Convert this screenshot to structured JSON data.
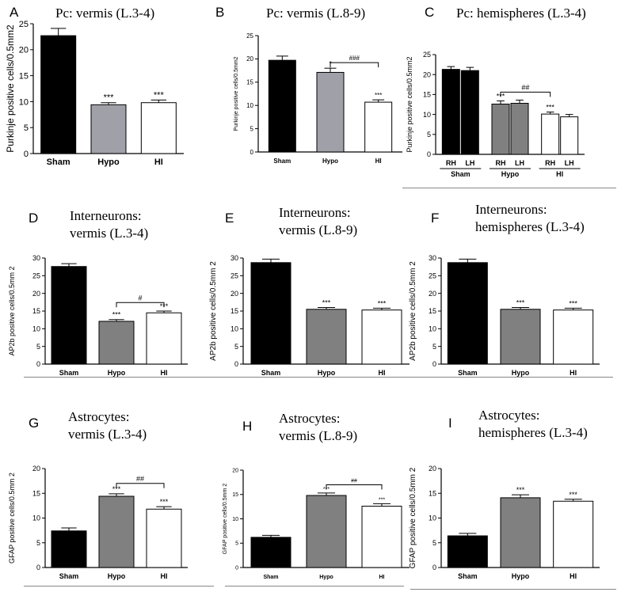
{
  "chart_data": [
    {
      "id": "A",
      "type": "bar",
      "title": "Pc: vermis (L.3-4)",
      "ylabel": "Purkinje positive cells/0.5mm2",
      "categories": [
        "Sham",
        "Hypo",
        "HI"
      ],
      "values": [
        22.7,
        9.4,
        9.8
      ],
      "errors": [
        1.4,
        0.4,
        0.5
      ],
      "fills": [
        "#000000",
        "#a0a0a8",
        "#ffffff"
      ],
      "ylim": [
        0,
        25
      ],
      "yticks": [
        0,
        5,
        10,
        15,
        20,
        25
      ],
      "annotations": [
        {
          "bar": 1,
          "text": "***"
        },
        {
          "bar": 2,
          "text": "***"
        }
      ],
      "brackets": []
    },
    {
      "id": "B",
      "type": "bar",
      "title": "Pc: vermis (L.8-9)",
      "ylabel": "Purkinje positive cells/0.5mm2",
      "categories": [
        "Sham",
        "Hypo",
        "HI"
      ],
      "values": [
        19.7,
        17.1,
        10.7
      ],
      "errors": [
        0.9,
        0.9,
        0.5
      ],
      "fills": [
        "#000000",
        "#a0a0a8",
        "#ffffff"
      ],
      "ylim": [
        0,
        25
      ],
      "yticks": [
        0,
        5,
        10,
        15,
        20,
        25
      ],
      "annotations": [
        {
          "bar": 1,
          "text": "*"
        },
        {
          "bar": 2,
          "text": "***"
        }
      ],
      "brackets": [
        {
          "from": 1,
          "to": 2,
          "y": 19.2,
          "text": "###"
        }
      ]
    },
    {
      "id": "C",
      "type": "bar",
      "title": "Pc: hemispheres (L.3-4)",
      "ylabel": "Purkinje positive cells/0.5mm2",
      "categories": [
        "RH",
        "LH",
        "RH",
        "LH",
        "RH",
        "LH"
      ],
      "values": [
        21.3,
        21.0,
        12.6,
        12.8,
        10.1,
        9.4
      ],
      "errors": [
        0.7,
        0.8,
        0.8,
        0.8,
        0.5,
        0.6
      ],
      "fills": [
        "#000000",
        "#000000",
        "#808080",
        "#808080",
        "#ffffff",
        "#ffffff"
      ],
      "ylim": [
        0,
        25
      ],
      "yticks": [
        0,
        5,
        10,
        15,
        20,
        25
      ],
      "groups": [
        "Sham",
        "Hypo",
        "HI"
      ],
      "annotations": [
        {
          "bar": 2,
          "text": "***"
        },
        {
          "bar": 4,
          "text": "***"
        }
      ],
      "brackets": [
        {
          "from": 2,
          "to": 4,
          "y": 15.6,
          "text": "##"
        }
      ]
    },
    {
      "id": "D",
      "type": "bar",
      "title": "Interneurons:",
      "subtitle": "vermis (L.3-4)",
      "ylabel": "AP2b positive cells/0.5mm 2",
      "categories": [
        "Sham",
        "Hypo",
        "HI"
      ],
      "values": [
        27.6,
        12.1,
        14.5
      ],
      "errors": [
        0.8,
        0.5,
        0.5
      ],
      "fills": [
        "#000000",
        "#808080",
        "#ffffff"
      ],
      "ylim": [
        0,
        30
      ],
      "yticks": [
        0,
        5,
        10,
        15,
        20,
        25,
        30
      ],
      "annotations": [
        {
          "bar": 1,
          "text": "***"
        },
        {
          "bar": 2,
          "text": "***"
        }
      ],
      "brackets": [
        {
          "from": 1,
          "to": 2,
          "y": 17.4,
          "text": "#"
        }
      ]
    },
    {
      "id": "E",
      "type": "bar",
      "title": "Interneurons:",
      "subtitle": "vermis (L.8-9)",
      "ylabel": "AP2b positive cells/0.5mm 2",
      "categories": [
        "Sham",
        "Hypo",
        "HI"
      ],
      "values": [
        28.7,
        15.5,
        15.3
      ],
      "errors": [
        1.0,
        0.5,
        0.5
      ],
      "fills": [
        "#000000",
        "#808080",
        "#ffffff"
      ],
      "ylim": [
        0,
        30
      ],
      "yticks": [
        0,
        5,
        10,
        15,
        20,
        25,
        30
      ],
      "annotations": [
        {
          "bar": 1,
          "text": "***"
        },
        {
          "bar": 2,
          "text": "***"
        }
      ],
      "brackets": []
    },
    {
      "id": "F",
      "type": "bar",
      "title": "Interneurons:",
      "subtitle": "hemispheres (L.3-4)",
      "ylabel": "AP2b positive cells/0.5mm 2",
      "categories": [
        "Sham",
        "Hypo",
        "HI"
      ],
      "values": [
        28.7,
        15.5,
        15.3
      ],
      "errors": [
        1.0,
        0.5,
        0.5
      ],
      "fills": [
        "#000000",
        "#808080",
        "#ffffff"
      ],
      "ylim": [
        0,
        30
      ],
      "yticks": [
        0,
        5,
        10,
        15,
        20,
        25,
        30
      ],
      "annotations": [
        {
          "bar": 1,
          "text": "***"
        },
        {
          "bar": 2,
          "text": "***"
        }
      ],
      "brackets": []
    },
    {
      "id": "G",
      "type": "bar",
      "title": "Astrocytes:",
      "subtitle": "vermis (L.3-4)",
      "ylabel": "GFAP positive cells/0.5mm 2",
      "categories": [
        "Sham",
        "Hypo",
        "HI"
      ],
      "values": [
        7.4,
        14.4,
        11.8
      ],
      "errors": [
        0.6,
        0.5,
        0.5
      ],
      "fills": [
        "#000000",
        "#808080",
        "#ffffff"
      ],
      "ylim": [
        0,
        20
      ],
      "yticks": [
        0,
        5,
        10,
        15,
        20
      ],
      "annotations": [
        {
          "bar": 1,
          "text": "***"
        },
        {
          "bar": 2,
          "text": "***"
        }
      ],
      "brackets": [
        {
          "from": 1,
          "to": 2,
          "y": 17.0,
          "text": "##"
        }
      ]
    },
    {
      "id": "H",
      "type": "bar",
      "title": "Astrocytes:",
      "subtitle": "vermis (L.8-9)",
      "ylabel": "GFAP positive cells/0.5mm 2",
      "categories": [
        "Sham",
        "Hypo",
        "HI"
      ],
      "values": [
        6.2,
        14.8,
        12.6
      ],
      "errors": [
        0.4,
        0.5,
        0.5
      ],
      "fills": [
        "#000000",
        "#808080",
        "#ffffff"
      ],
      "ylim": [
        0,
        20
      ],
      "yticks": [
        0,
        5,
        10,
        15,
        20
      ],
      "annotations": [
        {
          "bar": 1,
          "text": "***"
        },
        {
          "bar": 2,
          "text": "***"
        }
      ],
      "brackets": [
        {
          "from": 1,
          "to": 2,
          "y": 17.0,
          "text": "##"
        }
      ]
    },
    {
      "id": "I",
      "type": "bar",
      "title": "Astrocytes:",
      "subtitle": "hemispheres (L.3-4)",
      "ylabel": "GFAP positive cells/0.5mm 2",
      "categories": [
        "Sham",
        "Hypo",
        "HI"
      ],
      "values": [
        6.4,
        14.1,
        13.4
      ],
      "errors": [
        0.5,
        0.6,
        0.4
      ],
      "fills": [
        "#000000",
        "#808080",
        "#ffffff"
      ],
      "ylim": [
        0,
        20
      ],
      "yticks": [
        0,
        5,
        10,
        15,
        20
      ],
      "annotations": [
        {
          "bar": 1,
          "text": "***"
        },
        {
          "bar": 2,
          "text": "***"
        }
      ],
      "brackets": []
    }
  ]
}
